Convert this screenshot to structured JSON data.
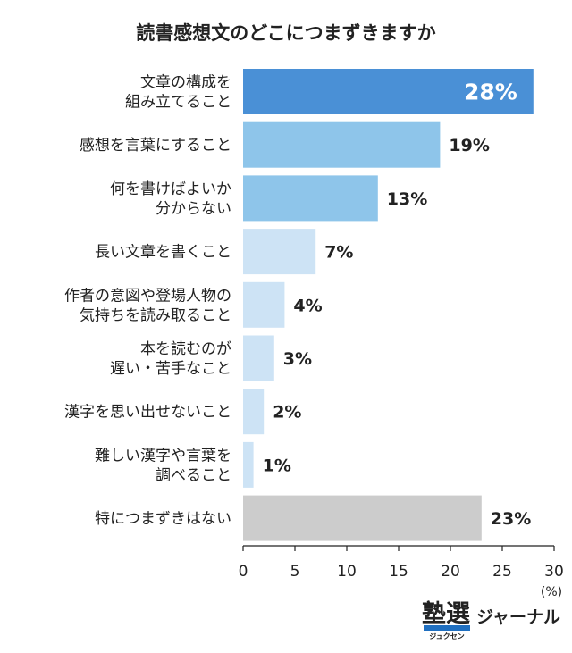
{
  "chart_data": {
    "type": "bar",
    "orientation": "horizontal",
    "title": "読書感想文のどこにつまずきますか",
    "categories": [
      [
        "文章の構成を",
        "組み立てること"
      ],
      [
        "感想を言葉にすること"
      ],
      [
        "何を書けばよいか",
        "分からない"
      ],
      [
        "長い文章を書くこと"
      ],
      [
        "作者の意図や登場人物の",
        "気持ちを読み取ること"
      ],
      [
        "本を読むのが",
        "遅い・苦手なこと"
      ],
      [
        "漢字を思い出せないこと"
      ],
      [
        "難しい漢字や言葉を",
        "調べること"
      ],
      [
        "特につまずきはない"
      ]
    ],
    "values": [
      28,
      19,
      13,
      7,
      4,
      3,
      2,
      1,
      23
    ],
    "value_labels": [
      "28%",
      "19%",
      "13%",
      "7%",
      "4%",
      "3%",
      "2%",
      "1%",
      "23%"
    ],
    "bar_colors": [
      "#4a90d6",
      "#8ec5ea",
      "#8ec5ea",
      "#cde3f5",
      "#cde3f5",
      "#cde3f5",
      "#cde3f5",
      "#cde3f5",
      "#cccccc"
    ],
    "xlim": [
      0,
      30
    ],
    "xticks": [
      "0",
      "5",
      "10",
      "15",
      "20",
      "25",
      "30"
    ],
    "unit_label": "(%)",
    "grid": false
  },
  "logo": {
    "main": "塾選",
    "sub": "ジュクセン",
    "tail": "ジャーナル",
    "accent_color": "#1f6fc0"
  }
}
